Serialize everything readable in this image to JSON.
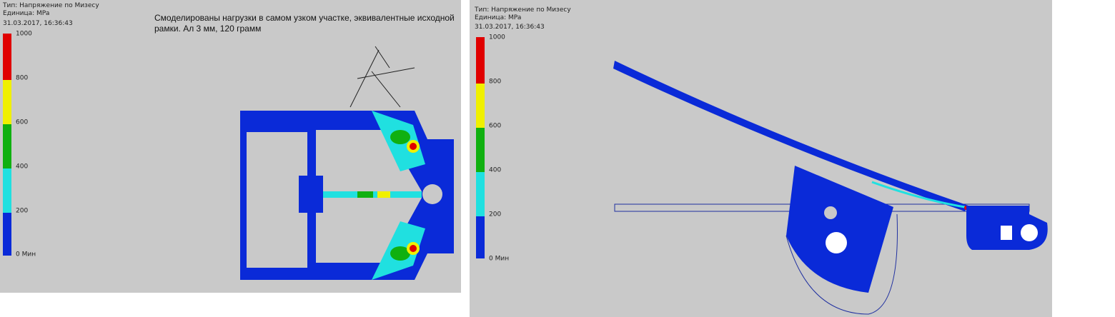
{
  "panels": [
    {
      "header": {
        "type": "Тип: Напряжение по Мизесу",
        "unit": "Единица: MPa",
        "timestamp": "31.03.2017, 16:36:43"
      },
      "legend": {
        "labels": [
          1000,
          800,
          600,
          400,
          200,
          "0 Мин"
        ]
      },
      "note": [
        "Смоделированы нагрузки в самом узком участке, эквивалентные исходной",
        "рамки. Ал 3 мм, 120 грамм"
      ]
    },
    {
      "header": {
        "type": "Тип: Напряжение по Мизесу",
        "unit": "Единица: MPa",
        "timestamp": "31.03.2017, 16:36:43"
      },
      "legend": {
        "labels": [
          1000,
          800,
          600,
          400,
          200,
          "0 Мин"
        ]
      }
    }
  ]
}
